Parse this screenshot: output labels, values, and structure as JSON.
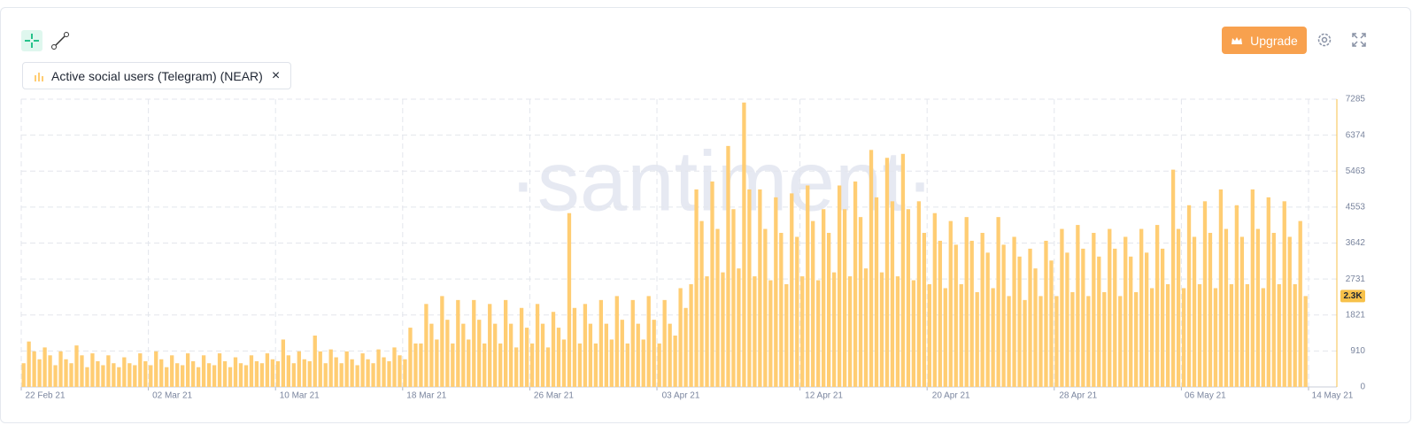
{
  "chart_data": {
    "type": "bar",
    "series_name": "Active social users (Telegram) (NEAR)",
    "upgrade_label": "Upgrade",
    "watermark": "·santiment·",
    "color": "#ffcd73",
    "axis_color": "#f7c14a",
    "grid": true,
    "ylim": [
      0,
      7285
    ],
    "yticks": [
      0,
      910,
      1821,
      2731,
      3642,
      4553,
      5463,
      6374,
      7285
    ],
    "xlim": [
      0,
      243
    ],
    "xticks": [
      {
        "value": 0,
        "label": "22 Feb 21"
      },
      {
        "value": 24,
        "label": "02 Mar 21"
      },
      {
        "value": 48,
        "label": "10 Mar 21"
      },
      {
        "value": 72,
        "label": "18 Mar 21"
      },
      {
        "value": 96,
        "label": "26 Mar 21"
      },
      {
        "value": 120,
        "label": "03 Apr 21"
      },
      {
        "value": 147,
        "label": "12 Apr 21"
      },
      {
        "value": 171,
        "label": "20 Apr 21"
      },
      {
        "value": 195,
        "label": "28 Apr 21"
      },
      {
        "value": 219,
        "label": "06 May 21"
      },
      {
        "value": 243,
        "label": "14 May 21"
      }
    ],
    "current_value": {
      "value": 2300,
      "label": "2.3K"
    },
    "values": [
      600,
      1150,
      900,
      700,
      1000,
      800,
      550,
      900,
      700,
      600,
      1050,
      800,
      500,
      850,
      650,
      550,
      800,
      600,
      500,
      750,
      600,
      550,
      850,
      650,
      550,
      900,
      700,
      500,
      800,
      600,
      550,
      850,
      650,
      500,
      800,
      600,
      550,
      850,
      650,
      500,
      750,
      600,
      550,
      800,
      650,
      600,
      850,
      700,
      650,
      1200,
      800,
      600,
      900,
      700,
      650,
      1300,
      900,
      600,
      950,
      750,
      600,
      900,
      700,
      550,
      850,
      700,
      600,
      950,
      750,
      650,
      1000,
      800,
      700,
      1500,
      1100,
      1100,
      2100,
      1600,
      1200,
      2300,
      1700,
      1100,
      2200,
      1600,
      1200,
      2200,
      1700,
      1100,
      2100,
      1600,
      1100,
      2200,
      1600,
      1000,
      2000,
      1500,
      1100,
      2100,
      1600,
      1000,
      1900,
      1500,
      1200,
      4400,
      2000,
      1100,
      2100,
      1600,
      1100,
      2200,
      1600,
      1200,
      2300,
      1700,
      1100,
      2200,
      1600,
      1200,
      2300,
      1700,
      1100,
      2200,
      1600,
      1300,
      2500,
      2000,
      2600,
      5000,
      4200,
      2800,
      5200,
      4000,
      2900,
      6100,
      4500,
      3000,
      7200,
      5000,
      2800,
      5000,
      4000,
      2700,
      4800,
      3900,
      2600,
      4900,
      3800,
      2800,
      5100,
      4200,
      2700,
      4500,
      3900,
      2900,
      5100,
      4500,
      2800,
      5200,
      4300,
      3000,
      6000,
      4800,
      2900,
      5800,
      4700,
      2800,
      5900,
      4500,
      2700,
      4700,
      3900,
      2600,
      4400,
      3700,
      2500,
      4200,
      3600,
      2600,
      4300,
      3700,
      2400,
      3900,
      3400,
      2500,
      4300,
      3600,
      2300,
      3800,
      3300,
      2200,
      3500,
      3000,
      2300,
      3700,
      3200,
      2300,
      4000,
      3400,
      2400,
      4100,
      3500,
      2300,
      3900,
      3300,
      2400,
      4000,
      3500,
      2300,
      3800,
      3300,
      2400,
      4000,
      3400,
      2500,
      4100,
      3500,
      2600,
      5500,
      4000,
      2500,
      4600,
      3800,
      2600,
      4700,
      3900,
      2500,
      5000,
      4000,
      2600,
      4600,
      3800,
      2600,
      5000,
      4000,
      2500,
      4800,
      3900,
      2600,
      4700,
      3800,
      2600,
      4200,
      2300
    ]
  }
}
